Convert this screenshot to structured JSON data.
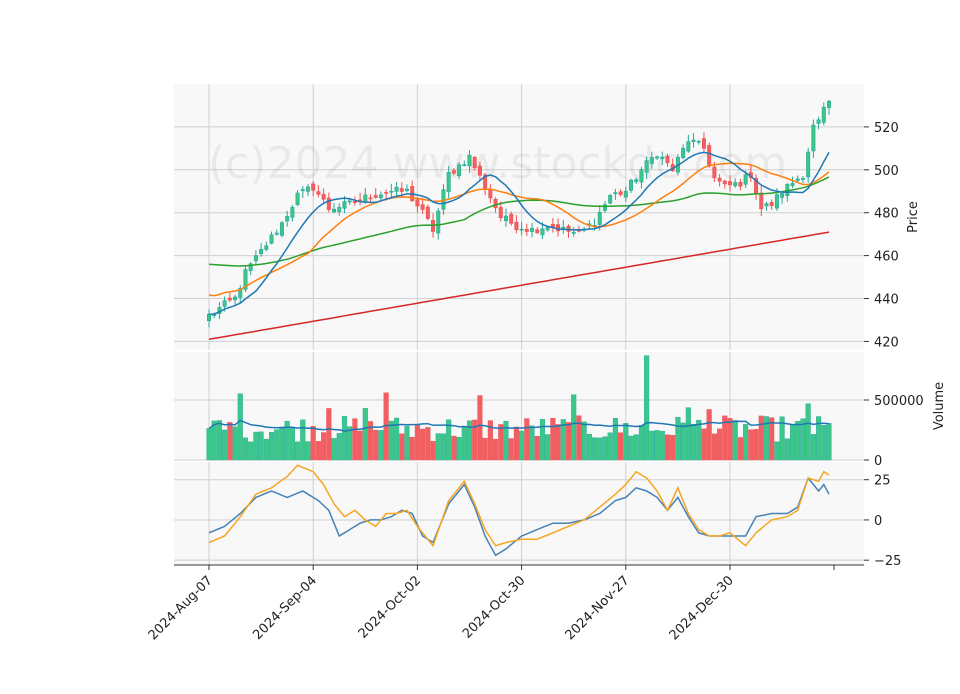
{
  "chart_data": {
    "type": "candlestick",
    "watermark": "(c)2024 www.stockdc.com",
    "colors": {
      "up": "#26a69a",
      "up_fill": "#3cc78a",
      "down": "#ef5350",
      "down_fill": "#f25f63",
      "ma_short": "#1f77b4",
      "ma_mid": "#ff7f0e",
      "ma_long": "#2ca02c",
      "ma_200": "#d62728",
      "volume_ma": "#1f77b4",
      "osc_fast": "#f5a623",
      "osc_slow": "#4682b4",
      "panel_bg": "#f8f8f8",
      "grid": "#d0d0d0"
    },
    "x": {
      "tick_labels": [
        "2024-Aug-07",
        "2024-Sep-04",
        "2024-Oct-02",
        "2024-Oct-30",
        "2024-Nov-27",
        "2024-Dec-30"
      ],
      "tick_index": [
        0,
        20,
        40,
        60,
        80,
        100
      ],
      "n_bars": 120
    },
    "price_panel": {
      "ylabel": "Price",
      "ylim": [
        416,
        540
      ],
      "yticks": [
        420,
        440,
        460,
        480,
        500,
        520
      ],
      "anchors": [
        [
          0,
          432
        ],
        [
          3,
          437
        ],
        [
          5,
          440
        ],
        [
          7,
          452
        ],
        [
          10,
          462
        ],
        [
          14,
          475
        ],
        [
          17,
          488
        ],
        [
          20,
          492
        ],
        [
          23,
          482
        ],
        [
          27,
          484
        ],
        [
          31,
          488
        ],
        [
          35,
          490
        ],
        [
          38,
          490
        ],
        [
          41,
          480
        ],
        [
          43,
          472
        ],
        [
          46,
          498
        ],
        [
          50,
          506
        ],
        [
          53,
          492
        ],
        [
          56,
          478
        ],
        [
          59,
          474
        ],
        [
          62,
          472
        ],
        [
          65,
          474
        ],
        [
          68,
          472
        ],
        [
          71,
          470
        ],
        [
          74,
          476
        ],
        [
          77,
          488
        ],
        [
          80,
          490
        ],
        [
          83,
          500
        ],
        [
          86,
          508
        ],
        [
          89,
          500
        ],
        [
          92,
          514
        ],
        [
          95,
          510
        ],
        [
          97,
          496
        ],
        [
          99,
          492
        ],
        [
          102,
          494
        ],
        [
          104,
          498
        ],
        [
          106,
          482
        ],
        [
          108,
          484
        ],
        [
          110,
          490
        ],
        [
          112,
          494
        ],
        [
          114,
          498
        ],
        [
          116,
          520
        ],
        [
          117,
          522
        ],
        [
          118,
          528
        ],
        [
          119,
          530
        ]
      ]
    },
    "volume_panel": {
      "ylabel": "Volume",
      "ylim": [
        0,
        900000
      ],
      "yticks": [
        0,
        500000
      ],
      "ytick_labels": [
        "0",
        "500000"
      ]
    },
    "oscillator_panel": {
      "ylim": [
        -28,
        36
      ],
      "yticks": [
        -25,
        0,
        25
      ],
      "ytick_labels": [
        "−25",
        "0",
        "25"
      ],
      "fast_anchors": [
        [
          0,
          -14
        ],
        [
          3,
          -10
        ],
        [
          6,
          2
        ],
        [
          9,
          16
        ],
        [
          12,
          20
        ],
        [
          15,
          27
        ],
        [
          17,
          34
        ],
        [
          20,
          30
        ],
        [
          22,
          22
        ],
        [
          24,
          10
        ],
        [
          26,
          2
        ],
        [
          28,
          6
        ],
        [
          30,
          0
        ],
        [
          32,
          -4
        ],
        [
          34,
          4
        ],
        [
          36,
          4
        ],
        [
          38,
          6
        ],
        [
          40,
          -4
        ],
        [
          43,
          -16
        ],
        [
          46,
          12
        ],
        [
          49,
          24
        ],
        [
          51,
          10
        ],
        [
          53,
          -6
        ],
        [
          55,
          -16
        ],
        [
          57,
          -14
        ],
        [
          60,
          -12
        ],
        [
          63,
          -12
        ],
        [
          66,
          -8
        ],
        [
          69,
          -4
        ],
        [
          72,
          0
        ],
        [
          75,
          8
        ],
        [
          78,
          16
        ],
        [
          80,
          22
        ],
        [
          82,
          30
        ],
        [
          84,
          26
        ],
        [
          86,
          18
        ],
        [
          88,
          6
        ],
        [
          90,
          20
        ],
        [
          92,
          4
        ],
        [
          94,
          -6
        ],
        [
          96,
          -10
        ],
        [
          98,
          -10
        ],
        [
          100,
          -8
        ],
        [
          103,
          -16
        ],
        [
          105,
          -8
        ],
        [
          108,
          0
        ],
        [
          111,
          2
        ],
        [
          113,
          6
        ],
        [
          115,
          26
        ],
        [
          117,
          24
        ],
        [
          118,
          30
        ],
        [
          119,
          28
        ]
      ],
      "slow_anchors": [
        [
          0,
          -8
        ],
        [
          3,
          -4
        ],
        [
          6,
          4
        ],
        [
          9,
          14
        ],
        [
          12,
          18
        ],
        [
          15,
          14
        ],
        [
          18,
          18
        ],
        [
          21,
          12
        ],
        [
          23,
          6
        ],
        [
          25,
          -10
        ],
        [
          27,
          -6
        ],
        [
          29,
          -2
        ],
        [
          31,
          0
        ],
        [
          33,
          0
        ],
        [
          35,
          2
        ],
        [
          37,
          6
        ],
        [
          39,
          4
        ],
        [
          41,
          -10
        ],
        [
          43,
          -14
        ],
        [
          46,
          10
        ],
        [
          49,
          22
        ],
        [
          51,
          8
        ],
        [
          53,
          -10
        ],
        [
          55,
          -22
        ],
        [
          57,
          -18
        ],
        [
          60,
          -10
        ],
        [
          63,
          -6
        ],
        [
          66,
          -2
        ],
        [
          69,
          -2
        ],
        [
          72,
          0
        ],
        [
          75,
          4
        ],
        [
          78,
          12
        ],
        [
          80,
          14
        ],
        [
          82,
          20
        ],
        [
          84,
          18
        ],
        [
          86,
          14
        ],
        [
          88,
          6
        ],
        [
          90,
          14
        ],
        [
          92,
          2
        ],
        [
          94,
          -8
        ],
        [
          96,
          -10
        ],
        [
          98,
          -10
        ],
        [
          100,
          -10
        ],
        [
          103,
          -10
        ],
        [
          105,
          2
        ],
        [
          108,
          4
        ],
        [
          111,
          4
        ],
        [
          113,
          8
        ],
        [
          115,
          26
        ],
        [
          117,
          18
        ],
        [
          118,
          22
        ],
        [
          119,
          16
        ]
      ]
    },
    "ma_periods": [
      10,
      20,
      50,
      200
    ]
  }
}
